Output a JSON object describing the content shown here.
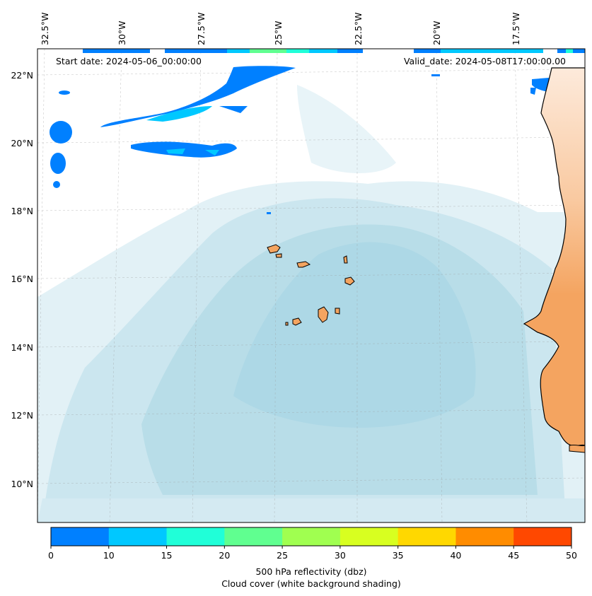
{
  "header": {
    "start_date": "Start date: 2024-05-06_00:00:00",
    "valid_date": "Valid_date: 2024-05-08T17:00:00.00"
  },
  "axes": {
    "lon_labels": [
      "32.5°W",
      "30°W",
      "27.5°W",
      "25°W",
      "22.5°W",
      "20°W",
      "17.5°W"
    ],
    "lat_labels": [
      "22°N",
      "20°N",
      "18°N",
      "16°N",
      "14°N",
      "12°N",
      "10°N"
    ]
  },
  "colorbar": {
    "ticks": [
      "0",
      "10",
      "15",
      "20",
      "25",
      "30",
      "35",
      "40",
      "45",
      "50"
    ],
    "colors": [
      "#0080ff",
      "#00c8ff",
      "#20ffd8",
      "#60ff90",
      "#a0ff50",
      "#d8ff20",
      "#ffd800",
      "#ff8c00",
      "#ff4800"
    ],
    "label_line1": "500 hPa reflectivity (dbz)",
    "label_line2": "Cloud cover (white background shading)"
  },
  "colors": {
    "ocean_cloud": "#add8e6",
    "land_light": "#fde0c8",
    "land_dark": "#f4a460",
    "reflectivity_low": "#0080ff",
    "reflectivity_mid": "#00c8ff"
  }
}
